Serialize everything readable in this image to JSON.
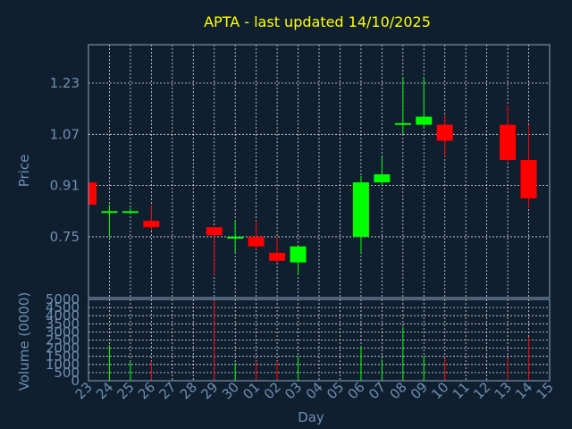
{
  "chart_data": {
    "type": "candlestick",
    "title": "APTA - last updated 14/10/2025",
    "xlabel": "Day",
    "ylabel_price": "Price",
    "ylabel_volume": "Volume (0000)",
    "days": [
      "23",
      "24",
      "25",
      "26",
      "27",
      "28",
      "29",
      "30",
      "01",
      "02",
      "03",
      "04",
      "05",
      "06",
      "07",
      "08",
      "09",
      "10",
      "11",
      "12",
      "13",
      "14",
      "15"
    ],
    "price_ticks": [
      "0.75",
      "0.91",
      "1.07",
      "1.23"
    ],
    "price_range": [
      0.56,
      1.35
    ],
    "volume_ticks": [
      "0",
      "500",
      "1000",
      "1500",
      "2000",
      "2500",
      "3000",
      "3500",
      "4000",
      "4500",
      "5000"
    ],
    "volume_range": [
      0,
      5000
    ],
    "grid": true,
    "colors": {
      "up": "#00ff00",
      "down": "#ff0000",
      "background": "#0f1f30",
      "title": "#ffff00",
      "text": "#6f8fb0"
    },
    "candles": [
      {
        "day": "23",
        "open": 0.92,
        "close": 0.85,
        "high": 0.92,
        "low": 0.85,
        "volume": 0
      },
      {
        "day": "24",
        "open": 0.83,
        "close": 0.83,
        "high": 0.85,
        "low": 0.75,
        "volume": 2200
      },
      {
        "day": "25",
        "open": 0.83,
        "close": 0.83,
        "high": 0.84,
        "low": 0.82,
        "volume": 1200
      },
      {
        "day": "26",
        "open": 0.8,
        "close": 0.78,
        "high": 0.85,
        "low": 0.77,
        "volume": 1200
      },
      {
        "day": "29",
        "open": 0.78,
        "close": 0.755,
        "high": 0.78,
        "low": 0.63,
        "volume": 5000
      },
      {
        "day": "30",
        "open": 0.75,
        "close": 0.75,
        "high": 0.8,
        "low": 0.7,
        "volume": 1100
      },
      {
        "day": "01",
        "open": 0.75,
        "close": 0.72,
        "high": 0.8,
        "low": 0.71,
        "volume": 1200
      },
      {
        "day": "02",
        "open": 0.7,
        "close": 0.675,
        "high": 0.75,
        "low": 0.67,
        "volume": 1200
      },
      {
        "day": "03",
        "open": 0.67,
        "close": 0.72,
        "high": 0.72,
        "low": 0.63,
        "volume": 1500
      },
      {
        "day": "06",
        "open": 0.75,
        "close": 0.92,
        "high": 0.94,
        "low": 0.7,
        "volume": 2100
      },
      {
        "day": "07",
        "open": 0.92,
        "close": 0.945,
        "high": 1.0,
        "low": 0.91,
        "volume": 1300
      },
      {
        "day": "08",
        "open": 1.1,
        "close": 1.105,
        "high": 1.25,
        "low": 1.07,
        "volume": 3300
      },
      {
        "day": "09",
        "open": 1.1,
        "close": 1.125,
        "high": 1.25,
        "low": 1.09,
        "volume": 1500
      },
      {
        "day": "10",
        "open": 1.1,
        "close": 1.05,
        "high": 1.13,
        "low": 1.0,
        "volume": 1400
      },
      {
        "day": "13",
        "open": 1.1,
        "close": 0.99,
        "high": 1.16,
        "low": 0.98,
        "volume": 1400
      },
      {
        "day": "14",
        "open": 0.99,
        "close": 0.87,
        "high": 1.1,
        "low": 0.84,
        "volume": 2700
      }
    ]
  }
}
